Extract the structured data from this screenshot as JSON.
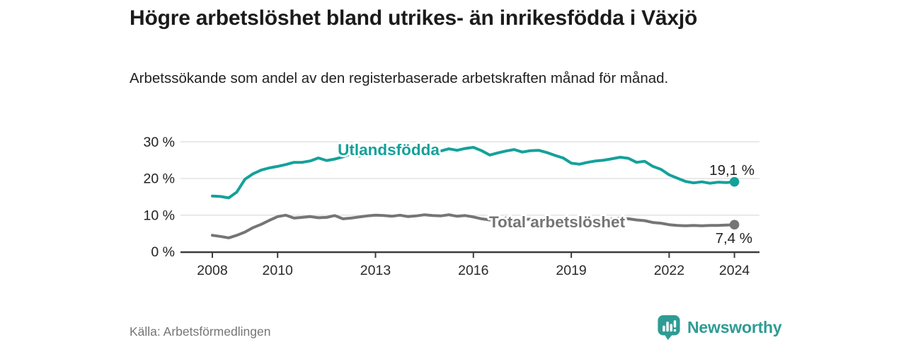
{
  "header": {
    "title": "Högre arbetslöshet bland utrikes- än inrikesfödda i Växjö",
    "subtitle": "Arbetssökande som andel av den registerbaserade arbetskraften månad för månad."
  },
  "chart_data": {
    "type": "line",
    "title": "Högre arbetslöshet bland utrikes- än inrikesfödda i Växjö",
    "xlabel": "",
    "ylabel": "",
    "unit": "%",
    "grid": "horizontal",
    "x_range": [
      2008,
      2024.75
    ],
    "ylim": [
      0,
      32
    ],
    "x_ticks": [
      2008,
      2010,
      2013,
      2016,
      2019,
      2022,
      2024
    ],
    "y_ticks": [
      {
        "value": 0,
        "label": "0 %"
      },
      {
        "value": 10,
        "label": "10 %"
      },
      {
        "value": 20,
        "label": "20 %"
      },
      {
        "value": 30,
        "label": "30 %"
      }
    ],
    "x": [
      2008.0,
      2008.25,
      2008.5,
      2008.75,
      2009.0,
      2009.25,
      2009.5,
      2009.75,
      2010.0,
      2010.25,
      2010.5,
      2010.75,
      2011.0,
      2011.25,
      2011.5,
      2011.75,
      2012.0,
      2012.25,
      2012.5,
      2012.75,
      2013.0,
      2013.25,
      2013.5,
      2013.75,
      2014.0,
      2014.25,
      2014.5,
      2014.75,
      2015.0,
      2015.25,
      2015.5,
      2015.75,
      2016.0,
      2016.25,
      2016.5,
      2016.75,
      2017.0,
      2017.25,
      2017.5,
      2017.75,
      2018.0,
      2018.25,
      2018.5,
      2018.75,
      2019.0,
      2019.25,
      2019.5,
      2019.75,
      2020.0,
      2020.25,
      2020.5,
      2020.75,
      2021.0,
      2021.25,
      2021.5,
      2021.75,
      2022.0,
      2022.25,
      2022.5,
      2022.75,
      2023.0,
      2023.25,
      2023.5,
      2023.75,
      2024.0
    ],
    "series": [
      {
        "name": "Utlandsfödda",
        "color": "#14a19a",
        "end_label": "19,1 %",
        "end_value": 19.1,
        "values": [
          15.2,
          15.1,
          14.7,
          16.3,
          19.8,
          21.3,
          22.3,
          22.9,
          23.3,
          23.8,
          24.4,
          24.4,
          24.8,
          25.6,
          24.9,
          25.3,
          25.9,
          26.7,
          26.1,
          26.5,
          26.8,
          27.0,
          27.1,
          27.3,
          27.2,
          27.6,
          27.4,
          27.7,
          27.5,
          28.1,
          27.7,
          28.2,
          28.5,
          27.6,
          26.4,
          27.0,
          27.5,
          27.9,
          27.2,
          27.6,
          27.7,
          27.1,
          26.3,
          25.6,
          24.2,
          23.9,
          24.4,
          24.8,
          25.0,
          25.4,
          25.8,
          25.5,
          24.4,
          24.7,
          23.3,
          22.5,
          21.0,
          20.1,
          19.2,
          18.8,
          19.1,
          18.7,
          19.0,
          18.9,
          19.1
        ]
      },
      {
        "name": "Total arbetslöshet",
        "color": "#757575",
        "end_label": "7,4 %",
        "end_value": 7.4,
        "values": [
          4.5,
          4.2,
          3.8,
          4.5,
          5.4,
          6.6,
          7.5,
          8.6,
          9.6,
          10.0,
          9.2,
          9.4,
          9.6,
          9.3,
          9.4,
          9.9,
          9.0,
          9.2,
          9.5,
          9.8,
          10.0,
          9.9,
          9.7,
          10.0,
          9.6,
          9.8,
          10.1,
          9.9,
          9.8,
          10.1,
          9.7,
          9.9,
          9.5,
          9.0,
          8.7,
          9.0,
          9.2,
          9.0,
          8.8,
          8.9,
          8.7,
          8.5,
          8.6,
          8.4,
          8.0,
          7.9,
          8.1,
          8.3,
          8.4,
          9.0,
          9.2,
          9.0,
          8.7,
          8.5,
          8.0,
          7.8,
          7.4,
          7.2,
          7.1,
          7.2,
          7.1,
          7.2,
          7.2,
          7.3,
          7.4
        ]
      }
    ],
    "legend_position": "inline-labels"
  },
  "footer": {
    "source": "Källa: Arbetsförmedlingen",
    "brand": "Newsworthy"
  },
  "colors": {
    "accent_teal": "#14a19a",
    "series_gray": "#757575",
    "axis": "#3c3c3c",
    "gridline": "#e3e3e3",
    "value_label": "#222222",
    "brand_teal": "#2e9c94"
  }
}
